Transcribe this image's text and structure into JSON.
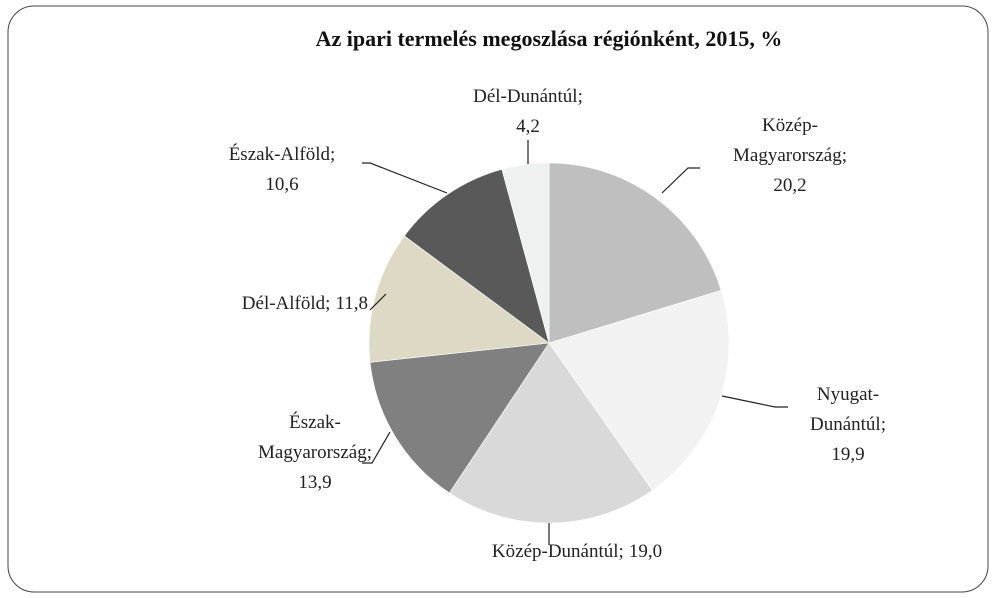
{
  "chart_data": {
    "type": "pie",
    "title": "Az ipari termelés megoszlása régiónként, 2015, %",
    "categories": [
      "Közép-Magyarország;",
      "Nyugat-Dunántúl;",
      "Közép-Dunántúl;",
      "Észak-Magyarország;",
      "Dél-Alföld;",
      "Észak-Alföld;",
      "Dél-Dunántúl;"
    ],
    "values": [
      20.2,
      19.9,
      19.0,
      13.9,
      11.8,
      10.6,
      4.2
    ],
    "value_labels": [
      "20,2",
      "19,9",
      "19,0",
      "13,9",
      "11,8",
      "10,6",
      "4,2"
    ],
    "colors": [
      "#bfbfbf",
      "#f2f2f2",
      "#d9d9d9",
      "#808080",
      "#ddd9c4",
      "#595959",
      "#eef1ef"
    ]
  }
}
